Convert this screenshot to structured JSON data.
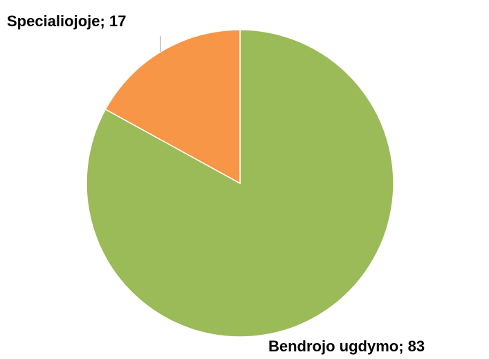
{
  "chart_data": {
    "type": "pie",
    "categories": [
      "Bendrojo ugdymo",
      "Specialiojoje"
    ],
    "values": [
      83,
      17
    ],
    "colors": [
      "#9bbb59",
      "#f79646"
    ]
  }
}
